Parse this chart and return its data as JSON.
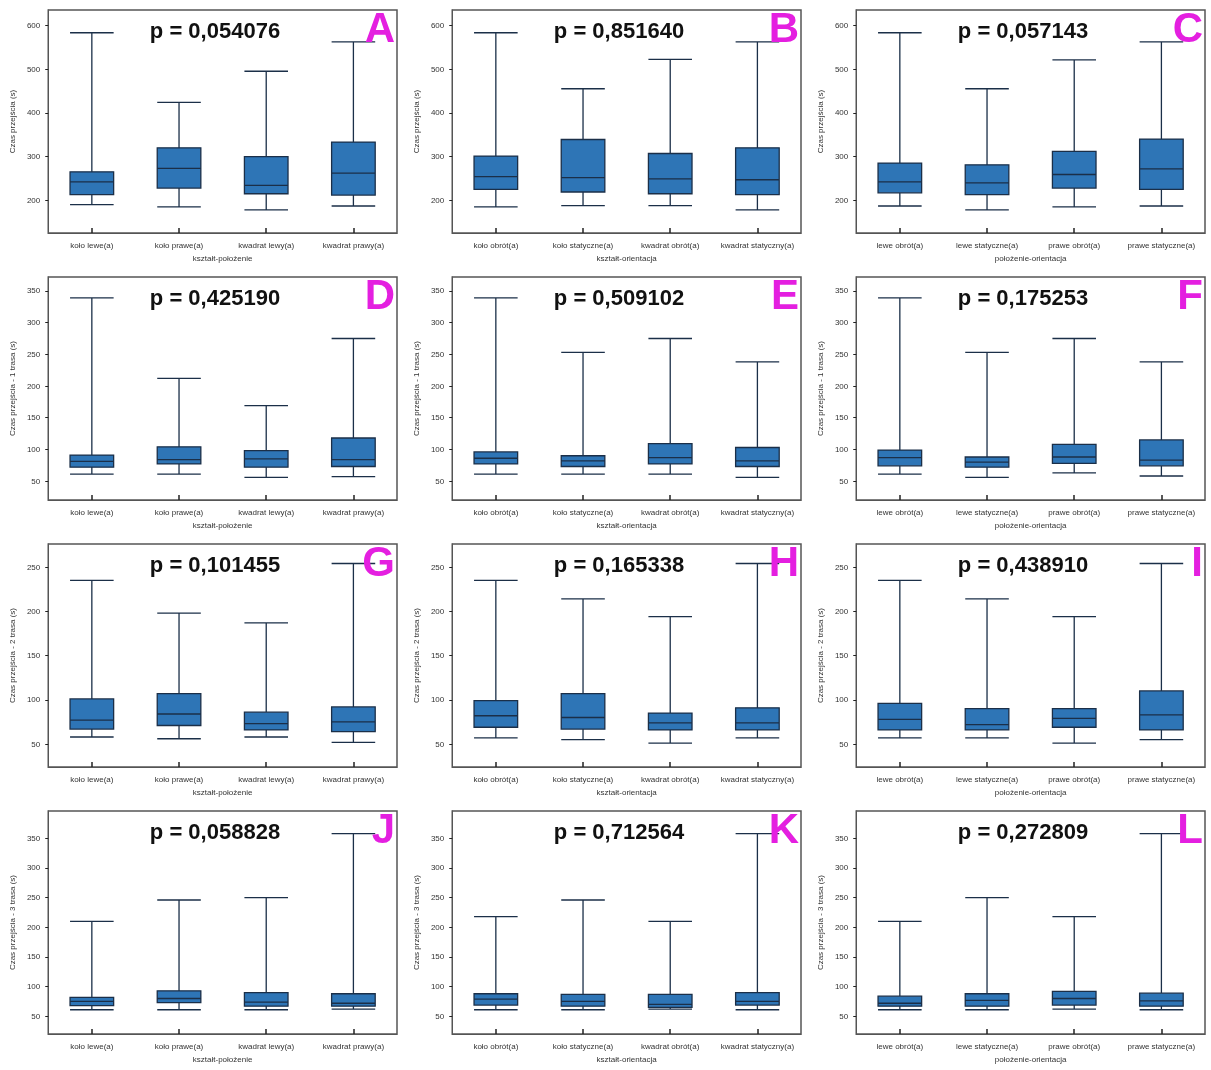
{
  "chart_data": [
    {
      "type": "box",
      "title": "p = 0,054076",
      "annotations": [
        "A"
      ],
      "ylabel": "Czas przejścia (s)",
      "xlabel": "kształt-położenie",
      "categories": [
        "koło lewe(a)",
        "koło prawe(a)",
        "kwadrat lewy(a)",
        "kwadrat prawy(a)"
      ],
      "color": "#2e75b6",
      "ylim": [
        125,
        635
      ],
      "yticks": [
        200,
        300,
        400,
        500,
        600
      ],
      "grid": false,
      "boxes": [
        {
          "low": 190,
          "q1": 213,
          "median": 242,
          "q3": 265,
          "high": 583
        },
        {
          "low": 185,
          "q1": 228,
          "median": 273,
          "q3": 320,
          "high": 424
        },
        {
          "low": 178,
          "q1": 215,
          "median": 234,
          "q3": 300,
          "high": 495
        },
        {
          "low": 187,
          "q1": 212,
          "median": 262,
          "q3": 333,
          "high": 562
        }
      ]
    },
    {
      "type": "box",
      "title": "p = 0,851640",
      "annotations": [
        "B"
      ],
      "ylabel": "Czas przejścia (s)",
      "xlabel": "kształt-orientacja",
      "categories": [
        "koło obrót(a)",
        "koło statyczne(a)",
        "kwadrat obrót(a)",
        "kwadrat statyczny(a)"
      ],
      "color": "#2e75b6",
      "ylim": [
        125,
        635
      ],
      "yticks": [
        200,
        300,
        400,
        500,
        600
      ],
      "grid": false,
      "boxes": [
        {
          "low": 185,
          "q1": 225,
          "median": 254,
          "q3": 301,
          "high": 583
        },
        {
          "low": 188,
          "q1": 219,
          "median": 252,
          "q3": 339,
          "high": 455
        },
        {
          "low": 188,
          "q1": 215,
          "median": 249,
          "q3": 307,
          "high": 522
        },
        {
          "low": 178,
          "q1": 213,
          "median": 247,
          "q3": 320,
          "high": 562
        }
      ]
    },
    {
      "type": "box",
      "title": "p = 0,057143",
      "annotations": [
        "C"
      ],
      "ylabel": "Czas przejścia (s)",
      "xlabel": "położenie-orientacja",
      "categories": [
        "lewe obrót(a)",
        "lewe statyczne(a)",
        "prawe obrót(a)",
        "prawe statyczne(a)"
      ],
      "color": "#2e75b6",
      "ylim": [
        125,
        635
      ],
      "yticks": [
        200,
        300,
        400,
        500,
        600
      ],
      "grid": false,
      "boxes": [
        {
          "low": 187,
          "q1": 217,
          "median": 242,
          "q3": 285,
          "high": 583
        },
        {
          "low": 178,
          "q1": 213,
          "median": 240,
          "q3": 281,
          "high": 455
        },
        {
          "low": 185,
          "q1": 228,
          "median": 259,
          "q3": 312,
          "high": 521
        },
        {
          "low": 187,
          "q1": 225,
          "median": 272,
          "q3": 340,
          "high": 562
        }
      ]
    },
    {
      "type": "box",
      "title": "p = 0,425190",
      "annotations": [
        "D"
      ],
      "ylabel": "Czas przejścia - 1 trasa (s)",
      "xlabel": "kształt-położenie",
      "categories": [
        "koło lewe(a)",
        "koło prawe(a)",
        "kwadrat lewy(a)",
        "kwadrat prawy(a)"
      ],
      "color": "#2e75b6",
      "ylim": [
        20,
        372
      ],
      "yticks": [
        50,
        100,
        150,
        200,
        250,
        300,
        350
      ],
      "grid": false,
      "boxes": [
        {
          "low": 61,
          "q1": 72,
          "median": 81,
          "q3": 91,
          "high": 339
        },
        {
          "low": 61,
          "q1": 77,
          "median": 84,
          "q3": 104,
          "high": 212
        },
        {
          "low": 56,
          "q1": 72,
          "median": 85,
          "q3": 98,
          "high": 169
        },
        {
          "low": 57,
          "q1": 73,
          "median": 84,
          "q3": 118,
          "high": 275
        }
      ]
    },
    {
      "type": "box",
      "title": "p = 0,509102",
      "annotations": [
        "E"
      ],
      "ylabel": "Czas przejścia - 1 trasa (s)",
      "xlabel": "kształt-orientacja",
      "categories": [
        "koło obrót(a)",
        "koło statyczne(a)",
        "kwadrat obrót(a)",
        "kwadrat statyczny(a)"
      ],
      "color": "#2e75b6",
      "ylim": [
        20,
        372
      ],
      "yticks": [
        50,
        100,
        150,
        200,
        250,
        300,
        350
      ],
      "grid": false,
      "boxes": [
        {
          "low": 61,
          "q1": 77,
          "median": 86,
          "q3": 96,
          "high": 339
        },
        {
          "low": 61,
          "q1": 73,
          "median": 82,
          "q3": 90,
          "high": 253
        },
        {
          "low": 61,
          "q1": 77,
          "median": 87,
          "q3": 109,
          "high": 275
        },
        {
          "low": 56,
          "q1": 73,
          "median": 82,
          "q3": 103,
          "high": 238
        }
      ]
    },
    {
      "type": "box",
      "title": "p = 0,175253",
      "annotations": [
        "F"
      ],
      "ylabel": "Czas przejścia - 1 trasa (s)",
      "xlabel": "położenie-orientacja",
      "categories": [
        "lewe obrót(a)",
        "lewe statyczne(a)",
        "prawe obrót(a)",
        "prawe statyczne(a)"
      ],
      "color": "#2e75b6",
      "ylim": [
        20,
        372
      ],
      "yticks": [
        50,
        100,
        150,
        200,
        250,
        300,
        350
      ],
      "grid": false,
      "boxes": [
        {
          "low": 61,
          "q1": 74,
          "median": 87,
          "q3": 99,
          "high": 339
        },
        {
          "low": 56,
          "q1": 72,
          "median": 80,
          "q3": 88,
          "high": 253
        },
        {
          "low": 63,
          "q1": 78,
          "median": 88,
          "q3": 108,
          "high": 275
        },
        {
          "low": 58,
          "q1": 74,
          "median": 83,
          "q3": 115,
          "high": 238
        }
      ]
    },
    {
      "type": "box",
      "title": "p = 0,101455",
      "annotations": [
        "G"
      ],
      "ylabel": "Czas przejścia - 2 trasa (s)",
      "xlabel": "kształt-położenie",
      "categories": [
        "koło lewe(a)",
        "koło prawe(a)",
        "kwadrat lewy(a)",
        "kwadrat prawy(a)"
      ],
      "color": "#2e75b6",
      "ylim": [
        24,
        276
      ],
      "yticks": [
        50,
        100,
        150,
        200,
        250
      ],
      "grid": false,
      "boxes": [
        {
          "low": 58,
          "q1": 67,
          "median": 77,
          "q3": 101,
          "high": 235
        },
        {
          "low": 56,
          "q1": 71,
          "median": 84,
          "q3": 107,
          "high": 198
        },
        {
          "low": 58,
          "q1": 66,
          "median": 73,
          "q3": 86,
          "high": 187
        },
        {
          "low": 52,
          "q1": 64,
          "median": 75,
          "q3": 92,
          "high": 254
        }
      ]
    },
    {
      "type": "box",
      "title": "p = 0,165338",
      "annotations": [
        "H"
      ],
      "ylabel": "Czas przejścia - 2 trasa (s)",
      "xlabel": "kształt-orientacja",
      "categories": [
        "koło obrót(a)",
        "koło statyczne(a)",
        "kwadrat obrót(a)",
        "kwadrat statyczny(a)"
      ],
      "color": "#2e75b6",
      "ylim": [
        24,
        276
      ],
      "yticks": [
        50,
        100,
        150,
        200,
        250
      ],
      "grid": false,
      "boxes": [
        {
          "low": 57,
          "q1": 69,
          "median": 82,
          "q3": 99,
          "high": 235
        },
        {
          "low": 55,
          "q1": 67,
          "median": 80,
          "q3": 107,
          "high": 214
        },
        {
          "low": 51,
          "q1": 66,
          "median": 74,
          "q3": 85,
          "high": 194
        },
        {
          "low": 57,
          "q1": 66,
          "median": 74,
          "q3": 91,
          "high": 254
        }
      ]
    },
    {
      "type": "box",
      "title": "p = 0,438910",
      "annotations": [
        "I"
      ],
      "ylabel": "Czas przejścia - 2 trasa (s)",
      "xlabel": "położenie-orientacja",
      "categories": [
        "lewe obrót(a)",
        "lewe statyczne(a)",
        "prawe obrót(a)",
        "prawe statyczne(a)"
      ],
      "color": "#2e75b6",
      "ylim": [
        24,
        276
      ],
      "yticks": [
        50,
        100,
        150,
        200,
        250
      ],
      "grid": false,
      "boxes": [
        {
          "low": 57,
          "q1": 66,
          "median": 78,
          "q3": 96,
          "high": 235
        },
        {
          "low": 57,
          "q1": 66,
          "median": 72,
          "q3": 90,
          "high": 214
        },
        {
          "low": 51,
          "q1": 69,
          "median": 79,
          "q3": 90,
          "high": 194
        },
        {
          "low": 55,
          "q1": 66,
          "median": 83,
          "q3": 110,
          "high": 254
        }
      ]
    },
    {
      "type": "box",
      "title": "p = 0,058828",
      "annotations": [
        "J"
      ],
      "ylabel": "Czas przejścia - 3 trasa (s)",
      "xlabel": "kształt-położenie",
      "categories": [
        "koło lewe(a)",
        "koło prawe(a)",
        "kwadrat lewy(a)",
        "kwadrat prawy(a)"
      ],
      "color": "#2e75b6",
      "ylim": [
        20,
        396
      ],
      "yticks": [
        50,
        100,
        150,
        200,
        250,
        300,
        350
      ],
      "grid": false,
      "boxes": [
        {
          "low": 61,
          "q1": 68,
          "median": 75,
          "q3": 82,
          "high": 210
        },
        {
          "low": 61,
          "q1": 73,
          "median": 80,
          "q3": 93,
          "high": 246
        },
        {
          "low": 61,
          "q1": 67,
          "median": 74,
          "q3": 90,
          "high": 250
        },
        {
          "low": 62,
          "q1": 67,
          "median": 72,
          "q3": 88,
          "high": 358
        }
      ]
    },
    {
      "type": "box",
      "title": "p = 0,712564",
      "annotations": [
        "K"
      ],
      "ylabel": "Czas przejścia - 3 trasa (s)",
      "xlabel": "kształt-orientacja",
      "categories": [
        "koło obrót(a)",
        "koło statyczne(a)",
        "kwadrat obrót(a)",
        "kwadrat statyczny(a)"
      ],
      "color": "#2e75b6",
      "ylim": [
        20,
        396
      ],
      "yticks": [
        50,
        100,
        150,
        200,
        250,
        300,
        350
      ],
      "grid": false,
      "boxes": [
        {
          "low": 61,
          "q1": 69,
          "median": 79,
          "q3": 88,
          "high": 218
        },
        {
          "low": 61,
          "q1": 67,
          "median": 75,
          "q3": 87,
          "high": 246
        },
        {
          "low": 62,
          "q1": 65,
          "median": 70,
          "q3": 87,
          "high": 210
        },
        {
          "low": 61,
          "q1": 69,
          "median": 75,
          "q3": 90,
          "high": 358
        }
      ]
    },
    {
      "type": "box",
      "title": "p = 0,272809",
      "annotations": [
        "L"
      ],
      "ylabel": "Czas przejścia - 3 trasa (s)",
      "xlabel": "położenie-orientacja",
      "categories": [
        "lewe obrót(a)",
        "lewe statyczne(a)",
        "prawe obrót(a)",
        "prawe statyczne(a)"
      ],
      "color": "#2e75b6",
      "ylim": [
        20,
        396
      ],
      "yticks": [
        50,
        100,
        150,
        200,
        250,
        300,
        350
      ],
      "grid": false,
      "boxes": [
        {
          "low": 61,
          "q1": 67,
          "median": 72,
          "q3": 84,
          "high": 210
        },
        {
          "low": 61,
          "q1": 67,
          "median": 77,
          "q3": 88,
          "high": 250
        },
        {
          "low": 62,
          "q1": 69,
          "median": 80,
          "q3": 92,
          "high": 218
        },
        {
          "low": 61,
          "q1": 67,
          "median": 76,
          "q3": 89,
          "high": 358
        }
      ]
    }
  ]
}
